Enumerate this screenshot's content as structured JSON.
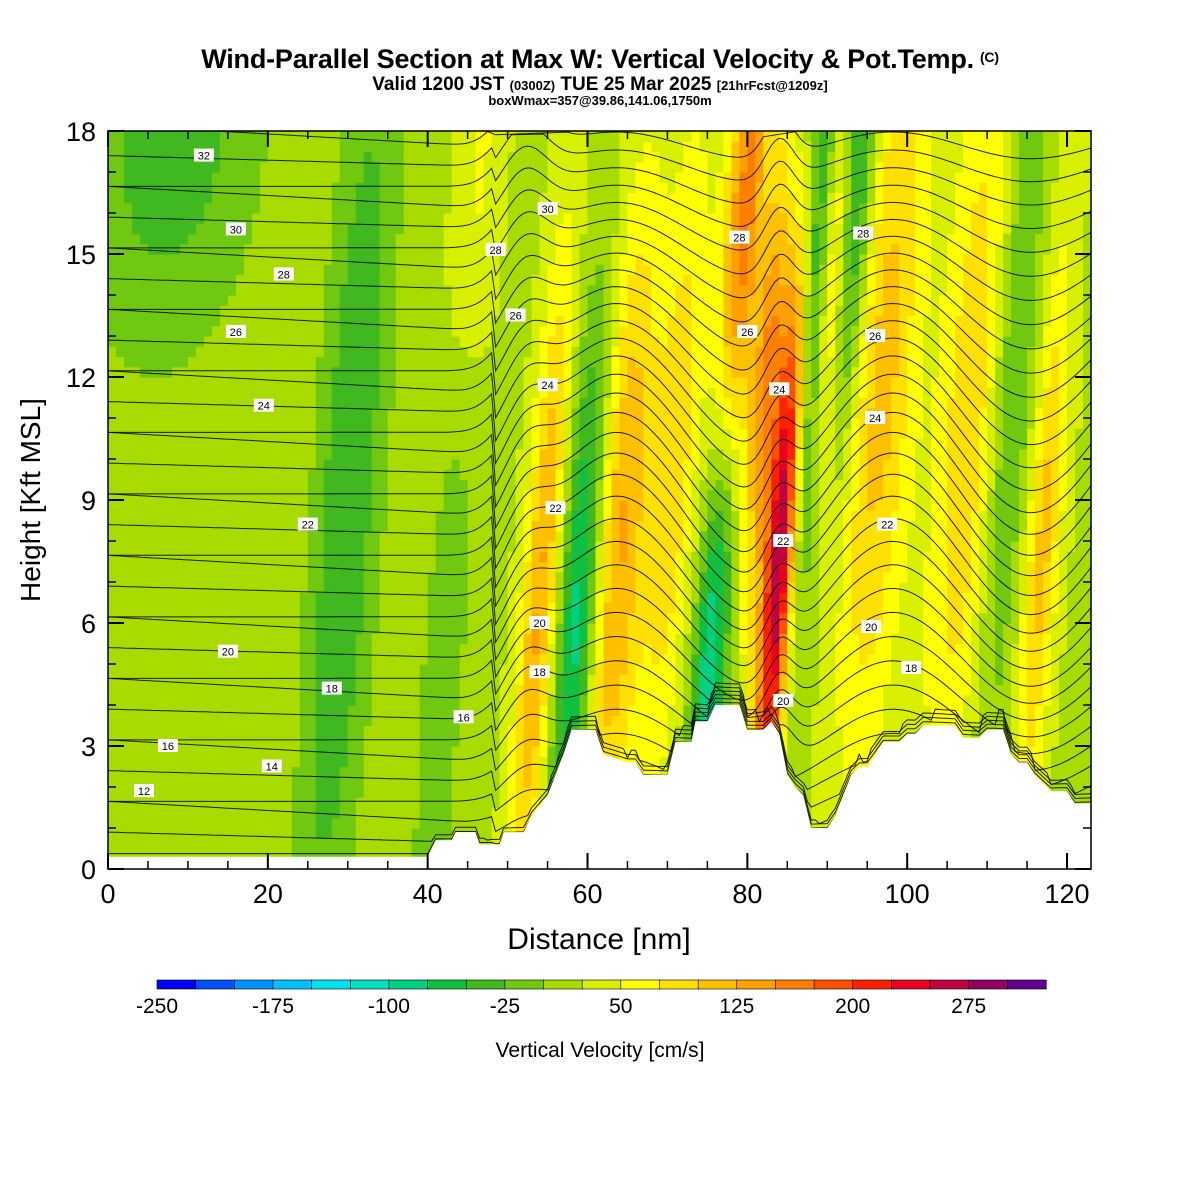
{
  "header": {
    "title": "Wind-Parallel Section at Max W: Vertical Velocity & Pot.Temp.",
    "title_suffix": "(C)",
    "valid_prefix": "Valid 1200 JST",
    "valid_utc": "(0300Z)",
    "valid_date": "TUE 25 Mar 2025",
    "forecast_info": "[21hrFcst@1209z]",
    "box_info": "boxWmax=357@39.86,141.06,1750m"
  },
  "chart_data": {
    "type": "heatmap",
    "title": "Wind-Parallel Section at Max W: Vertical Velocity & Pot.Temp.",
    "xlabel": "Distance [nm]",
    "ylabel": "Height [Kft MSL]",
    "xlim": [
      0,
      123
    ],
    "ylim": [
      0,
      18
    ],
    "x_ticks": [
      0,
      20,
      40,
      60,
      80,
      100,
      120
    ],
    "y_ticks": [
      0,
      3,
      6,
      9,
      12,
      15,
      18
    ],
    "colorbar": {
      "label": "Vertical Velocity [cm/s]",
      "tick_labels": [
        "-250",
        "-175",
        "-100",
        "-25",
        "50",
        "125",
        "200",
        "275"
      ],
      "tick_values": [
        -250,
        -175,
        -100,
        -25,
        50,
        125,
        200,
        275
      ],
      "range": [
        -250,
        325
      ],
      "colors": [
        "#0000ff",
        "#0050ff",
        "#0090ff",
        "#00c0ff",
        "#00e0f0",
        "#00e0c0",
        "#00d080",
        "#10c040",
        "#40b820",
        "#70c810",
        "#a8dc00",
        "#d8f000",
        "#ffff00",
        "#ffe000",
        "#ffc000",
        "#ffa000",
        "#ff8000",
        "#ff5000",
        "#ff2000",
        "#e80020",
        "#c00040",
        "#900060",
        "#600090"
      ]
    },
    "w_features": [
      {
        "x": 54,
        "h": 6.5,
        "sx": 1.6,
        "sy": 6,
        "w": 110
      },
      {
        "x": 59,
        "h": 6.5,
        "sx": 1.8,
        "sy": 5,
        "w": -120
      },
      {
        "x": 64,
        "h": 8,
        "sx": 2.5,
        "sy": 6,
        "w": 110
      },
      {
        "x": 71,
        "h": 10,
        "sx": 2.0,
        "sy": 6,
        "w": 70
      },
      {
        "x": 76,
        "h": 6.5,
        "sx": 1.6,
        "sy": 4.5,
        "w": -180
      },
      {
        "x": 79,
        "h": 14,
        "sx": 1.8,
        "sy": 6,
        "w": 170
      },
      {
        "x": 84.5,
        "h": 8.5,
        "sx": 1.4,
        "sy": 5.5,
        "w": 330
      },
      {
        "x": 82.5,
        "h": 12,
        "sx": 1.2,
        "sy": 4,
        "w": 120
      },
      {
        "x": 87.5,
        "h": 13,
        "sx": 1.8,
        "sy": 6,
        "w": -160
      },
      {
        "x": 91,
        "h": 15,
        "sx": 1.4,
        "sy": 4,
        "w": 150
      },
      {
        "x": 93,
        "h": 16,
        "sx": 1.6,
        "sy": 4,
        "w": -130
      },
      {
        "x": 97,
        "h": 12,
        "sx": 3.0,
        "sy": 7,
        "w": 90
      },
      {
        "x": 108,
        "h": 11,
        "sx": 3.0,
        "sy": 7,
        "w": 80
      },
      {
        "x": 113,
        "h": 12,
        "sx": 2.0,
        "sy": 7,
        "w": -60
      },
      {
        "x": 117,
        "h": 8,
        "sx": 1.5,
        "sy": 5,
        "w": 90
      },
      {
        "x": 46,
        "h": 16,
        "sx": 2.0,
        "sy": 5,
        "w": 60
      },
      {
        "x": 30,
        "h": 9,
        "sx": 3.0,
        "sy": 9,
        "w": -70
      },
      {
        "x": 43,
        "h": 8,
        "sx": 2.0,
        "sy": 8,
        "w": -50
      },
      {
        "x": 8,
        "h": 18,
        "sx": 8.0,
        "sy": 4,
        "w": -60
      }
    ],
    "terrain": [
      [
        0,
        0.3
      ],
      [
        40,
        0.3
      ],
      [
        41,
        0.7
      ],
      [
        43,
        0.7
      ],
      [
        43.5,
        0.9
      ],
      [
        46,
        0.9
      ],
      [
        46.5,
        0.6
      ],
      [
        49,
        0.6
      ],
      [
        49.5,
        0.9
      ],
      [
        52,
        0.9
      ],
      [
        53,
        1.3
      ],
      [
        55,
        1.8
      ],
      [
        57,
        2.8
      ],
      [
        58,
        3.4
      ],
      [
        61,
        3.4
      ],
      [
        62,
        2.8
      ],
      [
        65,
        2.6
      ],
      [
        66,
        2.6
      ],
      [
        67,
        2.3
      ],
      [
        70,
        2.3
      ],
      [
        71,
        3.1
      ],
      [
        73,
        3.1
      ],
      [
        73.5,
        3.6
      ],
      [
        75,
        3.6
      ],
      [
        76,
        4.0
      ],
      [
        79,
        4.0
      ],
      [
        80,
        3.4
      ],
      [
        82,
        3.4
      ],
      [
        83,
        3.6
      ],
      [
        84,
        3.3
      ],
      [
        85,
        2.3
      ],
      [
        86,
        2.0
      ],
      [
        87,
        1.8
      ],
      [
        88,
        1.0
      ],
      [
        90,
        1.0
      ],
      [
        91,
        1.3
      ],
      [
        92,
        1.8
      ],
      [
        93,
        2.3
      ],
      [
        94,
        2.5
      ],
      [
        95,
        2.5
      ],
      [
        96,
        2.8
      ],
      [
        97,
        3.1
      ],
      [
        99,
        3.1
      ],
      [
        100,
        3.3
      ],
      [
        101,
        3.3
      ],
      [
        102,
        3.5
      ],
      [
        106,
        3.5
      ],
      [
        107,
        3.2
      ],
      [
        109,
        3.2
      ],
      [
        110,
        3.4
      ],
      [
        112,
        3.4
      ],
      [
        113,
        2.8
      ],
      [
        114,
        2.6
      ],
      [
        115,
        2.6
      ],
      [
        116,
        2.3
      ],
      [
        117,
        2.1
      ],
      [
        118,
        1.9
      ],
      [
        120,
        1.9
      ],
      [
        121,
        1.6
      ],
      [
        123,
        1.6
      ]
    ],
    "theta_contour_labels": [
      {
        "text": "32",
        "x": 12,
        "h": 17.4
      },
      {
        "text": "30",
        "x": 16,
        "h": 15.6
      },
      {
        "text": "28",
        "x": 22,
        "h": 14.5
      },
      {
        "text": "26",
        "x": 16,
        "h": 13.1
      },
      {
        "text": "24",
        "x": 19.5,
        "h": 11.3
      },
      {
        "text": "22",
        "x": 25,
        "h": 8.4
      },
      {
        "text": "20",
        "x": 15,
        "h": 5.3
      },
      {
        "text": "18",
        "x": 28,
        "h": 4.4
      },
      {
        "text": "16",
        "x": 7.5,
        "h": 3.0
      },
      {
        "text": "14",
        "x": 20.5,
        "h": 2.5
      },
      {
        "text": "12",
        "x": 4.5,
        "h": 1.9
      },
      {
        "text": "30",
        "x": 55,
        "h": 16.1
      },
      {
        "text": "28",
        "x": 48.5,
        "h": 15.1
      },
      {
        "text": "26",
        "x": 51,
        "h": 13.5
      },
      {
        "text": "24",
        "x": 55,
        "h": 11.8
      },
      {
        "text": "22",
        "x": 56,
        "h": 8.8
      },
      {
        "text": "20",
        "x": 54,
        "h": 6.0
      },
      {
        "text": "18",
        "x": 54,
        "h": 4.8
      },
      {
        "text": "16",
        "x": 44.5,
        "h": 3.7
      },
      {
        "text": "28",
        "x": 79,
        "h": 15.4
      },
      {
        "text": "26",
        "x": 80,
        "h": 13.1
      },
      {
        "text": "24",
        "x": 84,
        "h": 11.7
      },
      {
        "text": "22",
        "x": 84.5,
        "h": 8.0
      },
      {
        "text": "20",
        "x": 84.5,
        "h": 4.1
      },
      {
        "text": "28",
        "x": 94.5,
        "h": 15.5
      },
      {
        "text": "26",
        "x": 96,
        "h": 13.0
      },
      {
        "text": "24",
        "x": 96,
        "h": 11.0
      },
      {
        "text": "22",
        "x": 97.5,
        "h": 8.4
      },
      {
        "text": "20",
        "x": 95.5,
        "h": 5.9
      },
      {
        "text": "18",
        "x": 100.5,
        "h": 4.9
      }
    ]
  }
}
